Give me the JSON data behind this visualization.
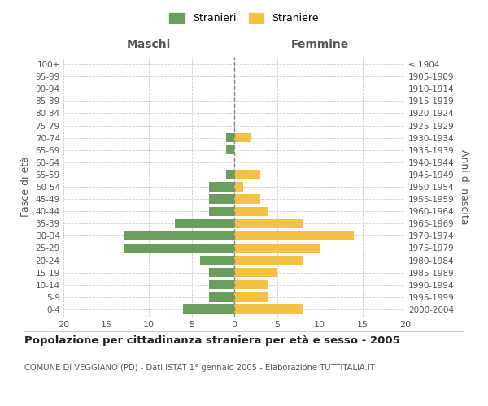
{
  "age_groups": [
    "0-4",
    "5-9",
    "10-14",
    "15-19",
    "20-24",
    "25-29",
    "30-34",
    "35-39",
    "40-44",
    "45-49",
    "50-54",
    "55-59",
    "60-64",
    "65-69",
    "70-74",
    "75-79",
    "80-84",
    "85-89",
    "90-94",
    "95-99",
    "100+"
  ],
  "birth_years": [
    "2000-2004",
    "1995-1999",
    "1990-1994",
    "1985-1989",
    "1980-1984",
    "1975-1979",
    "1970-1974",
    "1965-1969",
    "1960-1964",
    "1955-1959",
    "1950-1954",
    "1945-1949",
    "1940-1944",
    "1935-1939",
    "1930-1934",
    "1925-1929",
    "1920-1924",
    "1915-1919",
    "1910-1914",
    "1905-1909",
    "≤ 1904"
  ],
  "maschi": [
    6,
    3,
    3,
    3,
    4,
    13,
    13,
    7,
    3,
    3,
    3,
    1,
    0,
    1,
    1,
    0,
    0,
    0,
    0,
    0,
    0
  ],
  "femmine": [
    8,
    4,
    4,
    5,
    8,
    10,
    14,
    8,
    4,
    3,
    1,
    3,
    0,
    0,
    2,
    0,
    0,
    0,
    0,
    0,
    0
  ],
  "color_maschi": "#6a9e5f",
  "color_femmine": "#f5c142",
  "title": "Popolazione per cittadinanza straniera per età e sesso - 2005",
  "subtitle": "COMUNE DI VEGGIANO (PD) - Dati ISTAT 1° gennaio 2005 - Elaborazione TUTTITALIA.IT",
  "ylabel_left": "Fasce di età",
  "ylabel_right": "Anni di nascita",
  "xlabel_left": "Maschi",
  "xlabel_right": "Femmine",
  "legend_maschi": "Stranieri",
  "legend_femmine": "Straniere",
  "xlim": 20,
  "background_color": "#ffffff",
  "grid_color": "#cccccc"
}
